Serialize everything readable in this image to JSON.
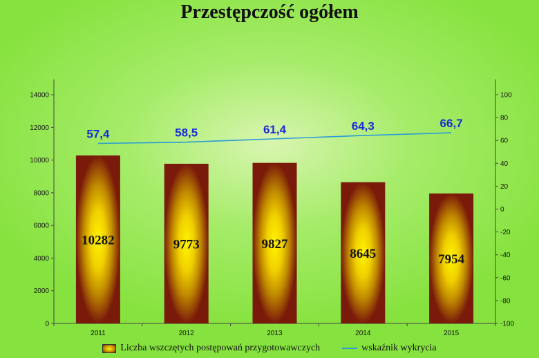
{
  "chart_data": {
    "type": "bar",
    "title": "Przestępczość ogółem",
    "categories": [
      "2011",
      "2012",
      "2013",
      "2014",
      "2015"
    ],
    "series": [
      {
        "name": "Liczba wszczętych postępowań przygotowawczych",
        "type": "bar",
        "axis": "left",
        "values": [
          10282,
          9773,
          9827,
          8645,
          7954
        ],
        "labels": [
          "10282",
          "9773",
          "9827",
          "8645",
          "7954"
        ]
      },
      {
        "name": "wskaźnik wykrycia",
        "type": "line",
        "axis": "right",
        "values": [
          57.4,
          58.5,
          61.4,
          64.3,
          66.7
        ],
        "labels": [
          "57,4",
          "58,5",
          "61,4",
          "64,3",
          "66,7"
        ]
      }
    ],
    "y_left": {
      "min": 0,
      "max": 14000,
      "ticks": [
        "0",
        "2000",
        "4000",
        "6000",
        "8000",
        "10000",
        "12000",
        "14000"
      ]
    },
    "y_right": {
      "min": -100,
      "max": 100,
      "ticks": [
        "-100",
        "-80",
        "-60",
        "-40",
        "-20",
        "0",
        "20",
        "40",
        "60",
        "80",
        "100"
      ]
    },
    "legend_position": "bottom",
    "grid": false,
    "colors": {
      "bar_outer": "#7a1a0a",
      "bar_mid": "#c08a00",
      "bar_inner": "#fff400",
      "line": "#2a9bd6",
      "line_label": "#1a2ad6"
    }
  }
}
